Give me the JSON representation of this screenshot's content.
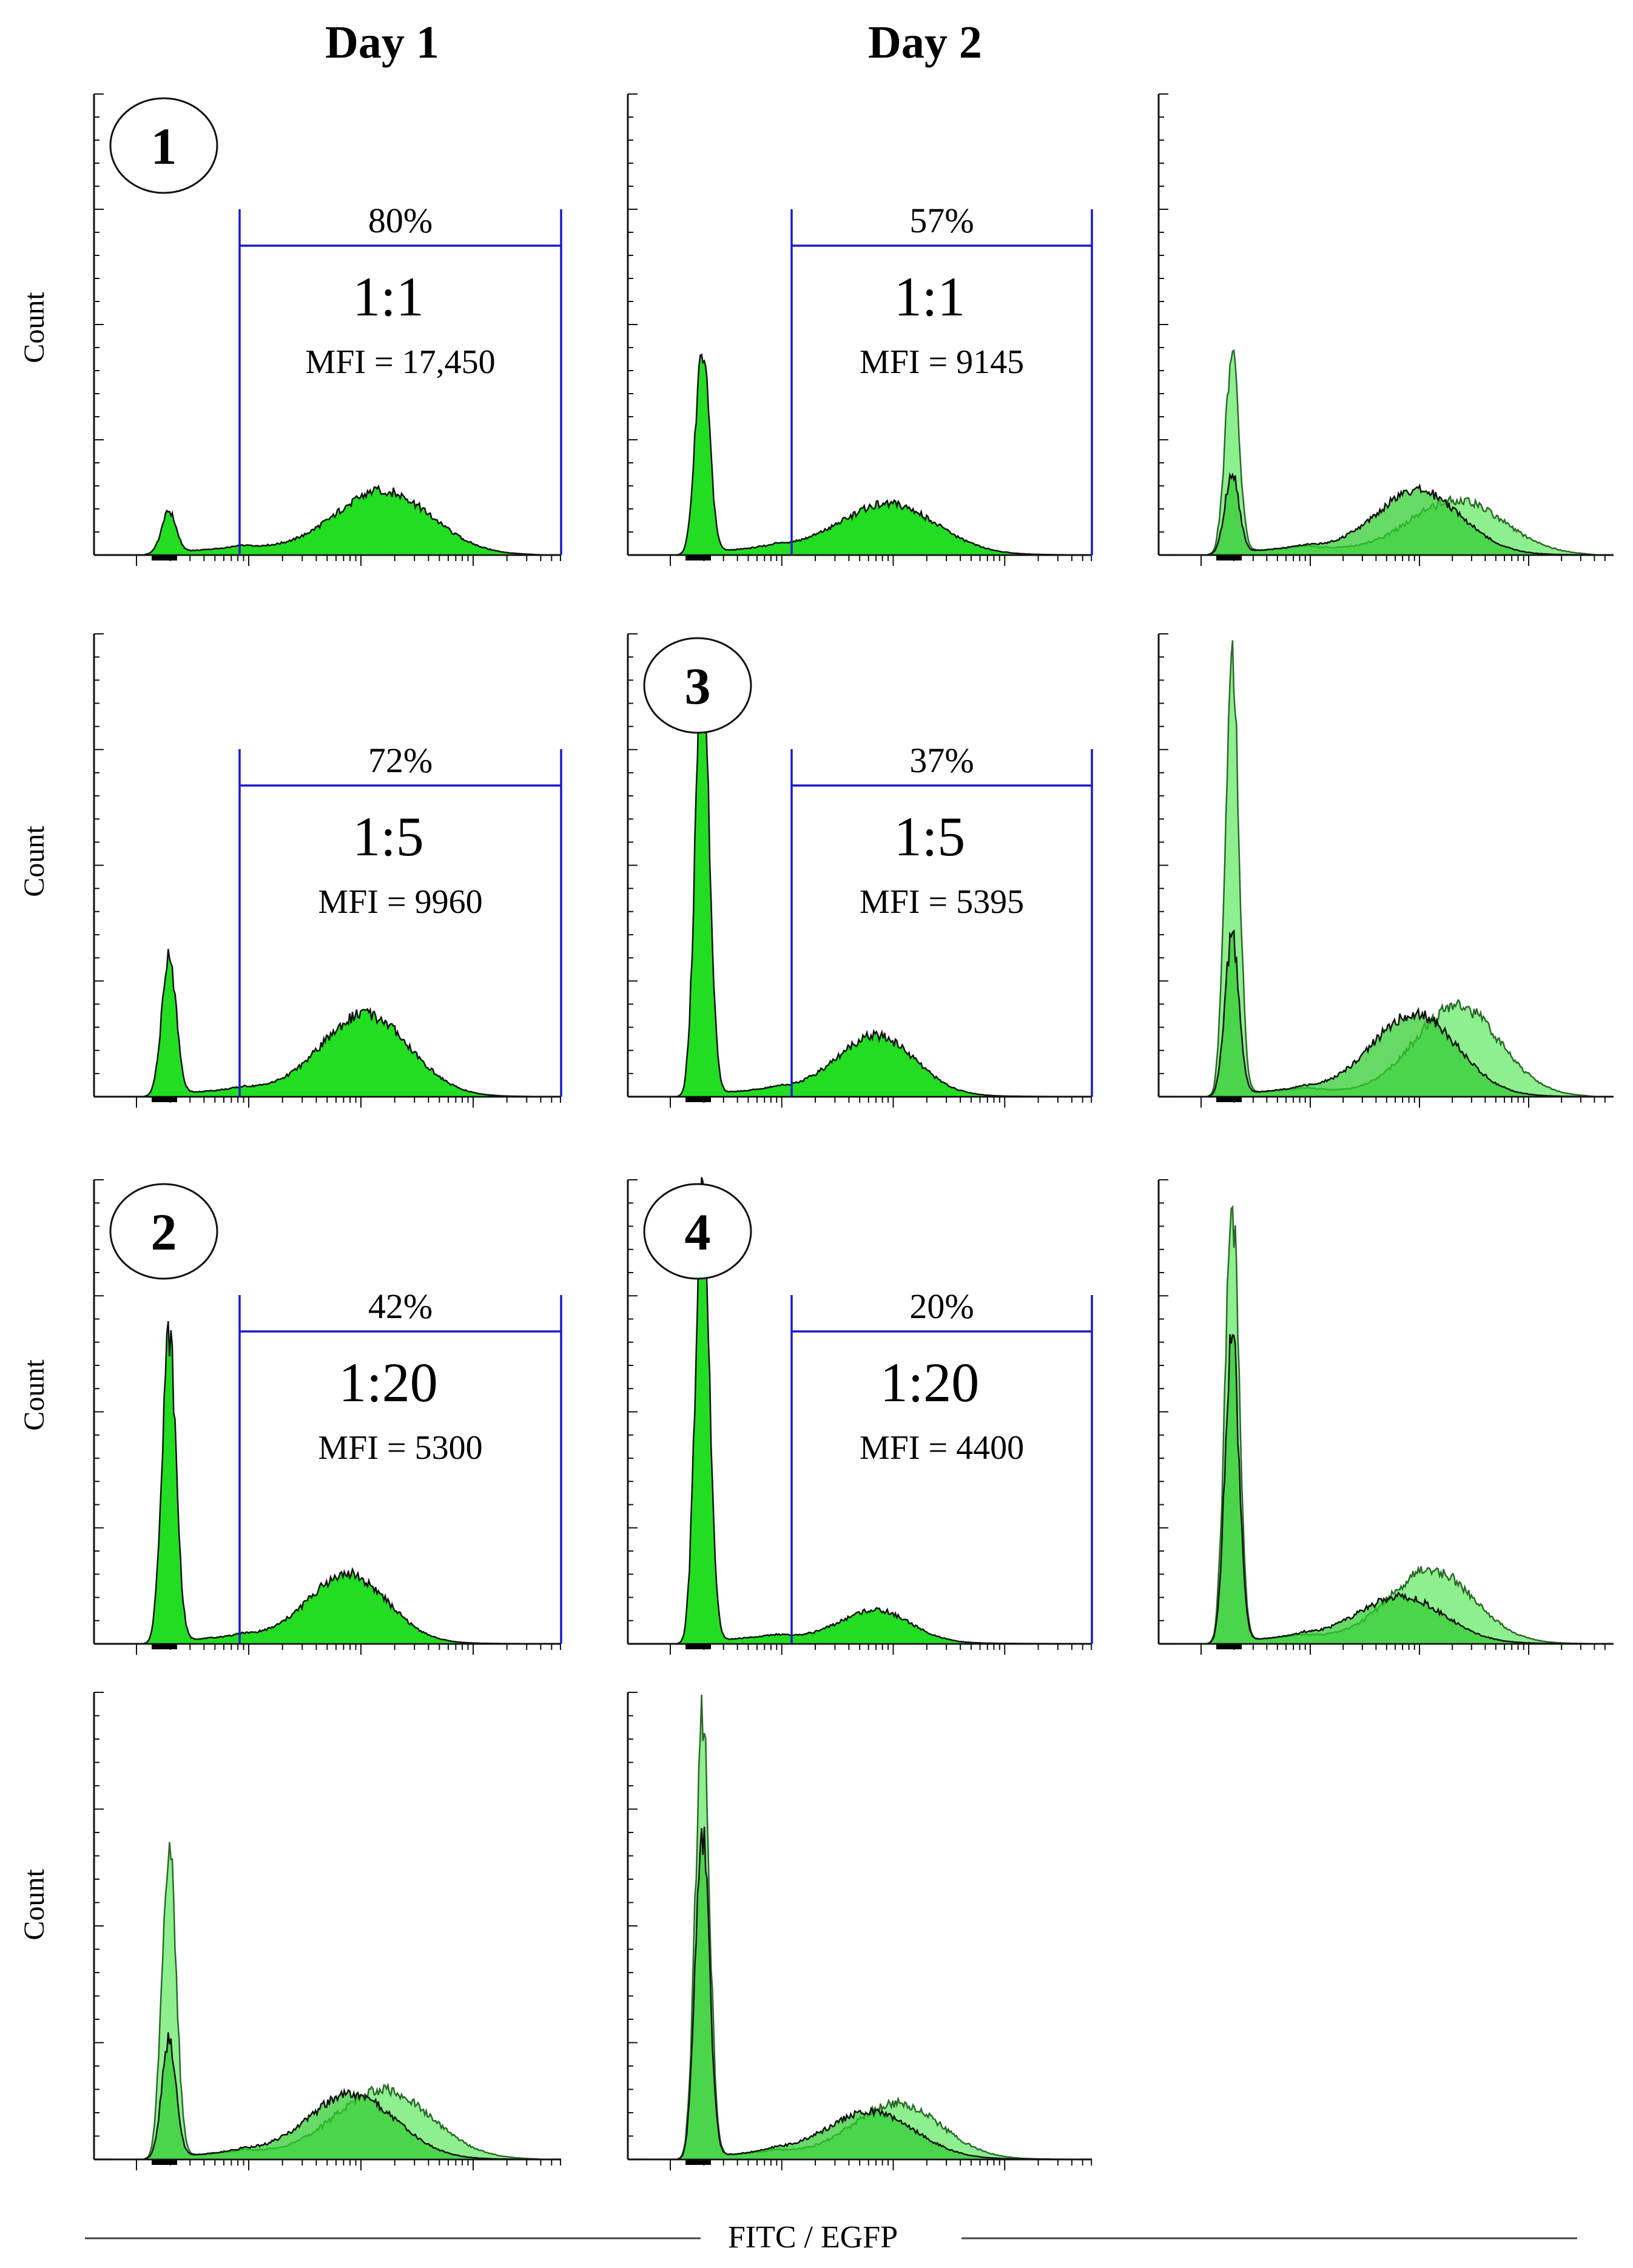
{
  "figure": {
    "column_headers": [
      "Day 1",
      "Day 2"
    ],
    "y_axis_label": "Count",
    "x_axis_label": "FITC / EGFP"
  },
  "chart_data": [
    {
      "id": "r1c1",
      "type": "histogram",
      "badge": "1",
      "gate": {
        "percent": "80%",
        "ratio": "1:1",
        "mfi": "MFI = 17,450"
      },
      "series": [
        {
          "name": "primary",
          "neg_peak": 0.09,
          "pos_center": 0.62,
          "pos_height": 0.14,
          "pos_width": 0.11
        }
      ]
    },
    {
      "id": "r1c2",
      "type": "histogram",
      "badge": "",
      "gate": {
        "percent": "57%",
        "ratio": "1:1",
        "mfi": "MFI = 9145"
      },
      "series": [
        {
          "name": "primary",
          "neg_peak": 0.45,
          "pos_center": 0.56,
          "pos_height": 0.11,
          "pos_width": 0.11
        }
      ]
    },
    {
      "id": "r1c3",
      "type": "histogram-overlay",
      "badge": "",
      "gate": null,
      "series": [
        {
          "name": "day1",
          "neg_peak": 0.44,
          "pos_center": 0.66,
          "pos_height": 0.12,
          "pos_width": 0.11
        },
        {
          "name": "day2",
          "neg_peak": 0.18,
          "pos_center": 0.57,
          "pos_height": 0.14,
          "pos_width": 0.1
        }
      ]
    },
    {
      "id": "r2c1",
      "type": "histogram",
      "badge": "",
      "gate": {
        "percent": "72%",
        "ratio": "1:5",
        "mfi": "MFI = 9960"
      },
      "series": [
        {
          "name": "primary",
          "neg_peak": 0.31,
          "pos_center": 0.58,
          "pos_height": 0.18,
          "pos_width": 0.1
        }
      ]
    },
    {
      "id": "r2c2",
      "type": "histogram",
      "badge": "3",
      "gate": {
        "percent": "37%",
        "ratio": "1:5",
        "mfi": "MFI = 5395"
      },
      "series": [
        {
          "name": "primary",
          "neg_peak": 0.97,
          "pos_center": 0.53,
          "pos_height": 0.13,
          "pos_width": 0.09
        }
      ]
    },
    {
      "id": "r2c3",
      "type": "histogram-overlay",
      "badge": "",
      "gate": null,
      "series": [
        {
          "name": "day1",
          "neg_peak": 0.97,
          "pos_center": 0.66,
          "pos_height": 0.2,
          "pos_width": 0.1
        },
        {
          "name": "day2",
          "neg_peak": 0.35,
          "pos_center": 0.56,
          "pos_height": 0.18,
          "pos_width": 0.1
        }
      ]
    },
    {
      "id": "r3c1",
      "type": "histogram",
      "badge": "2",
      "gate": {
        "percent": "42%",
        "ratio": "1:20",
        "mfi": "MFI = 5300"
      },
      "series": [
        {
          "name": "primary",
          "neg_peak": 0.68,
          "pos_center": 0.54,
          "pos_height": 0.15,
          "pos_width": 0.09
        }
      ]
    },
    {
      "id": "r3c2",
      "type": "histogram",
      "badge": "4",
      "gate": {
        "percent": "20%",
        "ratio": "1:20",
        "mfi": "MFI = 4400"
      },
      "series": [
        {
          "name": "primary",
          "neg_peak": 0.97,
          "pos_center": 0.53,
          "pos_height": 0.07,
          "pos_width": 0.08
        }
      ]
    },
    {
      "id": "r3c3",
      "type": "histogram-overlay",
      "badge": "",
      "gate": null,
      "series": [
        {
          "name": "day1",
          "neg_peak": 0.97,
          "pos_center": 0.6,
          "pos_height": 0.16,
          "pos_width": 0.1
        },
        {
          "name": "day2",
          "neg_peak": 0.68,
          "pos_center": 0.53,
          "pos_height": 0.1,
          "pos_width": 0.1
        }
      ]
    },
    {
      "id": "r4c1",
      "type": "histogram-overlay",
      "badge": "",
      "gate": null,
      "series": [
        {
          "name": "day1",
          "neg_peak": 0.68,
          "pos_center": 0.62,
          "pos_height": 0.15,
          "pos_width": 0.11
        },
        {
          "name": "day2",
          "neg_peak": 0.26,
          "pos_center": 0.55,
          "pos_height": 0.14,
          "pos_width": 0.1
        }
      ]
    },
    {
      "id": "r4c2",
      "type": "histogram-overlay",
      "badge": "",
      "gate": null,
      "series": [
        {
          "name": "day1",
          "neg_peak": 0.97,
          "pos_center": 0.58,
          "pos_height": 0.12,
          "pos_width": 0.1
        },
        {
          "name": "day2",
          "neg_peak": 0.72,
          "pos_center": 0.52,
          "pos_height": 0.1,
          "pos_width": 0.1
        }
      ]
    }
  ],
  "colors": {
    "primary_fill": "#22dd22",
    "overlay_fill_light": "#88ee88",
    "overlay_fill_dark": "#33cc33",
    "gate": "#1a1acc",
    "outline": "#111111"
  }
}
